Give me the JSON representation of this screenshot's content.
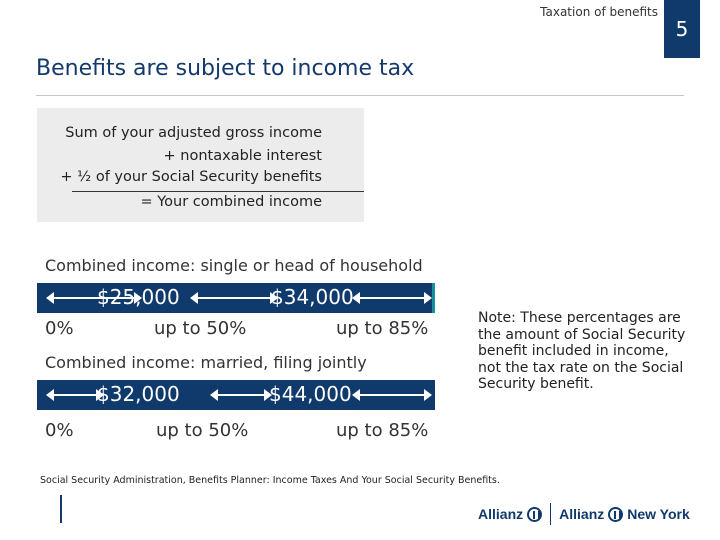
{
  "header": {
    "section_label": "Taxation of benefits",
    "page_number": "5",
    "title": "Benefits are subject to income tax"
  },
  "formula": {
    "line1": "Sum of your adjusted gross income",
    "line2": "+ nontaxable interest",
    "line3": "+ ½ of your Social Security benefits",
    "result": "= Your combined income"
  },
  "single": {
    "heading": "Combined income: single or head of household",
    "threshold_low": "$25,000",
    "threshold_high": "$34,000",
    "tier0": "0%",
    "tier1": "up to 50%",
    "tier2": "up to 85%"
  },
  "married": {
    "heading": "Combined income: married, filing jointly",
    "threshold_low": "$32,000",
    "threshold_high": "$44,000",
    "tier0": "0%",
    "tier1": "up to 50%",
    "tier2": "up to 85%"
  },
  "note": "Note: These percentages are the amount of Social Security benefit included in income, not the tax rate on the Social Security benefit.",
  "footnote": "Social Security Administration, Benefits Planner: Income Taxes And Your Social Security Benefits.",
  "logos": {
    "brand1": "Allianz",
    "brand2": "Allianz",
    "brand2_suffix": "New York"
  },
  "colors": {
    "navy": "#0f3a6b",
    "teal": "#1a8fa0",
    "formula_bg": "#ececec"
  }
}
